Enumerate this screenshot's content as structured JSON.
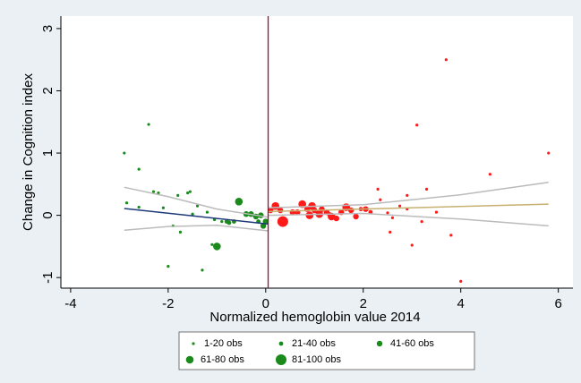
{
  "chart_data": {
    "type": "scatter",
    "x_label": "Normalized hemoglobin value 2014",
    "y_label": "Change in Cognition index",
    "xlim": [
      -4.2,
      6.3
    ],
    "ylim": [
      -1.17,
      3.2
    ],
    "xticks": [
      -4,
      -2,
      0,
      2,
      4,
      6
    ],
    "yticks": [
      -1,
      0,
      1,
      2,
      3
    ],
    "cutoff": 0.05,
    "cutoff_color": "#b0003a",
    "below_color": "#1a8a1a",
    "above_color": "#ff1a1a",
    "series": [
      {
        "name": "1-20 obs",
        "x": [
          -2.9,
          -2.4,
          -2.6,
          -2.85,
          -2.3,
          -2.2,
          -2.6,
          -2.1,
          -1.9,
          -1.75,
          -2.0,
          -1.55,
          -1.6,
          -1.8,
          -1.3,
          -1.1,
          -1.4,
          -1.2,
          -1.5,
          -1.05,
          -0.9,
          2.3,
          3.7,
          3.1,
          3.3,
          2.9,
          2.5,
          2.55,
          2.75,
          2.9,
          3.0,
          3.2,
          3.5,
          3.8,
          4.0,
          4.6,
          5.8,
          2.35,
          2.6
        ],
        "y": [
          1.0,
          1.46,
          0.74,
          0.2,
          0.38,
          0.36,
          0.13,
          0.12,
          -0.17,
          -0.27,
          -0.82,
          0.38,
          0.36,
          0.32,
          -0.88,
          -0.47,
          0.15,
          0.05,
          0.02,
          -0.07,
          -0.1,
          0.42,
          2.5,
          1.45,
          0.42,
          0.32,
          0.04,
          -0.27,
          0.15,
          0.1,
          -0.48,
          -0.1,
          0.05,
          -0.32,
          -1.06,
          0.66,
          1.0,
          0.25,
          -0.04
        ]
      },
      {
        "name": "21-40 obs",
        "x": [
          -0.8,
          -0.75,
          -0.65,
          -0.15,
          1.95,
          2.15,
          1.3
        ],
        "y": [
          -0.1,
          -0.12,
          -0.1,
          -0.1,
          0.1,
          0.05,
          0.02
        ]
      },
      {
        "name": "41-60 obs",
        "x": [
          -0.4,
          -0.3,
          -0.2,
          -0.1,
          -0.05,
          0.0,
          0.1,
          0.3,
          0.55,
          0.65,
          0.85,
          1.0,
          1.15,
          1.25,
          1.45,
          1.55,
          1.75,
          1.85,
          2.05
        ],
        "y": [
          0.02,
          0.02,
          -0.02,
          0.0,
          -0.17,
          -0.1,
          0.08,
          0.08,
          0.05,
          0.05,
          0.1,
          0.08,
          0.1,
          0.05,
          -0.05,
          0.05,
          0.08,
          -0.02,
          0.1
        ]
      },
      {
        "name": "61-80 obs",
        "x": [
          -1.0,
          -0.55,
          0.2,
          0.75,
          0.9,
          0.95,
          1.1,
          1.35,
          1.65
        ],
        "y": [
          -0.5,
          0.22,
          0.15,
          0.18,
          0.0,
          0.15,
          0.02,
          -0.02,
          0.13
        ]
      },
      {
        "name": "81-100 obs",
        "x": [
          0.35
        ],
        "y": [
          -0.1
        ]
      }
    ],
    "lines": [
      {
        "color": "#1f3a7a",
        "x": [
          -2.9,
          0.05
        ],
        "y": [
          0.11,
          -0.14
        ]
      },
      {
        "color": "#c8b070",
        "x": [
          0.05,
          5.8
        ],
        "y": [
          0.06,
          0.18
        ]
      },
      {
        "color": "#bbbbbb",
        "x": [
          -2.9,
          -2.0,
          -1.0,
          0.05
        ],
        "y": [
          0.45,
          0.3,
          0.1,
          -0.03
        ]
      },
      {
        "color": "#bbbbbb",
        "x": [
          -2.9,
          -2.0,
          -1.0,
          0.05
        ],
        "y": [
          -0.24,
          -0.18,
          -0.16,
          -0.25
        ]
      },
      {
        "color": "#bbbbbb",
        "x": [
          0.05,
          2.0,
          4.0,
          5.8
        ],
        "y": [
          0.12,
          0.17,
          0.33,
          0.53
        ]
      },
      {
        "color": "#bbbbbb",
        "x": [
          0.05,
          2.0,
          4.0,
          5.8
        ],
        "y": [
          0.0,
          0.03,
          -0.06,
          -0.17
        ]
      }
    ]
  }
}
